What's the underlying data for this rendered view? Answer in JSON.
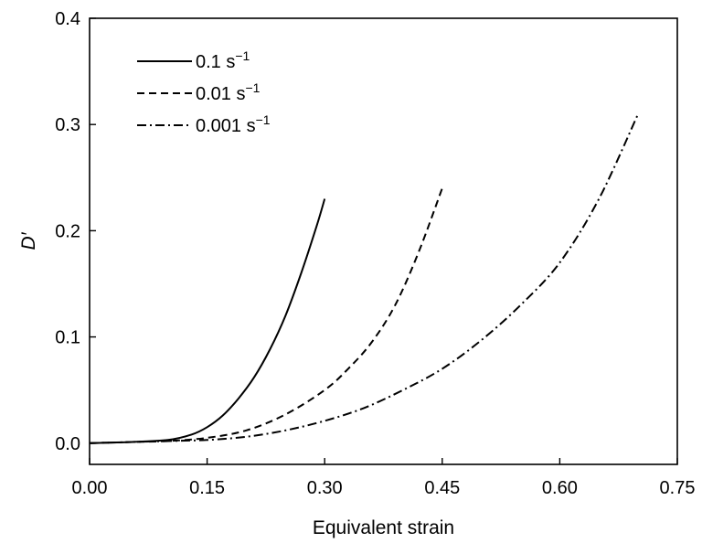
{
  "chart_data": {
    "type": "line",
    "title": "",
    "xlabel": "Equivalent strain",
    "ylabel": "D′",
    "xlim": [
      0.0,
      0.75
    ],
    "ylim": [
      -0.02,
      0.4
    ],
    "xticks": [
      "0.00",
      "0.15",
      "0.30",
      "0.45",
      "0.60",
      "0.75"
    ],
    "yticks": [
      "0.0",
      "0.1",
      "0.2",
      "0.3",
      "0.4"
    ],
    "grid": false,
    "legend_position": "top-left",
    "series": [
      {
        "name": "0.1 s",
        "unit_exponent": "−1",
        "style": "solid",
        "color": "#000000",
        "x": [
          0.0,
          0.05,
          0.1,
          0.13,
          0.15,
          0.17,
          0.19,
          0.21,
          0.23,
          0.25,
          0.27,
          0.29,
          0.3
        ],
        "y": [
          0.0,
          0.001,
          0.003,
          0.008,
          0.015,
          0.026,
          0.042,
          0.062,
          0.088,
          0.12,
          0.16,
          0.205,
          0.23
        ]
      },
      {
        "name": "0.01 s",
        "unit_exponent": "−1",
        "style": "dashed",
        "color": "#000000",
        "x": [
          0.0,
          0.05,
          0.1,
          0.15,
          0.2,
          0.25,
          0.3,
          0.33,
          0.36,
          0.39,
          0.42,
          0.45
        ],
        "y": [
          0.0,
          0.001,
          0.002,
          0.005,
          0.012,
          0.027,
          0.05,
          0.07,
          0.095,
          0.13,
          0.18,
          0.24
        ]
      },
      {
        "name": "0.001 s",
        "unit_exponent": "−1",
        "style": "dash-dot",
        "color": "#000000",
        "x": [
          0.0,
          0.1,
          0.15,
          0.2,
          0.25,
          0.3,
          0.35,
          0.4,
          0.45,
          0.5,
          0.55,
          0.6,
          0.65,
          0.7
        ],
        "y": [
          0.0,
          0.002,
          0.003,
          0.006,
          0.012,
          0.021,
          0.033,
          0.05,
          0.07,
          0.097,
          0.13,
          0.17,
          0.23,
          0.31
        ]
      }
    ]
  }
}
